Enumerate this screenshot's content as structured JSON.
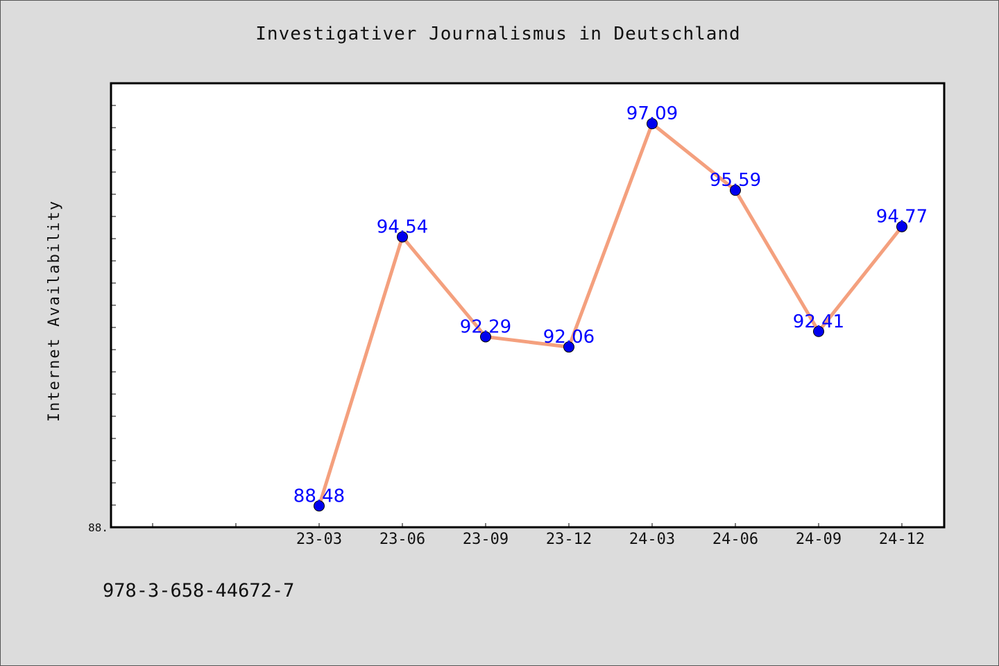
{
  "chart_data": {
    "type": "line",
    "title": "Investigativer Journalismus in Deutschland",
    "xlabel": "",
    "ylabel": "Internet Availability",
    "categories": [
      "23-03",
      "23-06",
      "23-09",
      "23-12",
      "24-03",
      "24-06",
      "24-09",
      "24-12"
    ],
    "series": [
      {
        "values": [
          88.48,
          94.54,
          92.29,
          92.06,
          97.09,
          95.59,
          92.41,
          94.77
        ],
        "labels": [
          "88.48",
          "94.54",
          "92.29",
          "92.06",
          "97.09",
          "95.59",
          "92.41",
          "94.77"
        ],
        "line_color": "#f4a07e",
        "marker_color": "#0000ee"
      }
    ],
    "y_tick_label": "88.",
    "ylim": [
      88.0,
      98.0
    ],
    "grid": false,
    "legend": "none"
  },
  "footer": {
    "isbn": "978-3-658-44672-7"
  }
}
